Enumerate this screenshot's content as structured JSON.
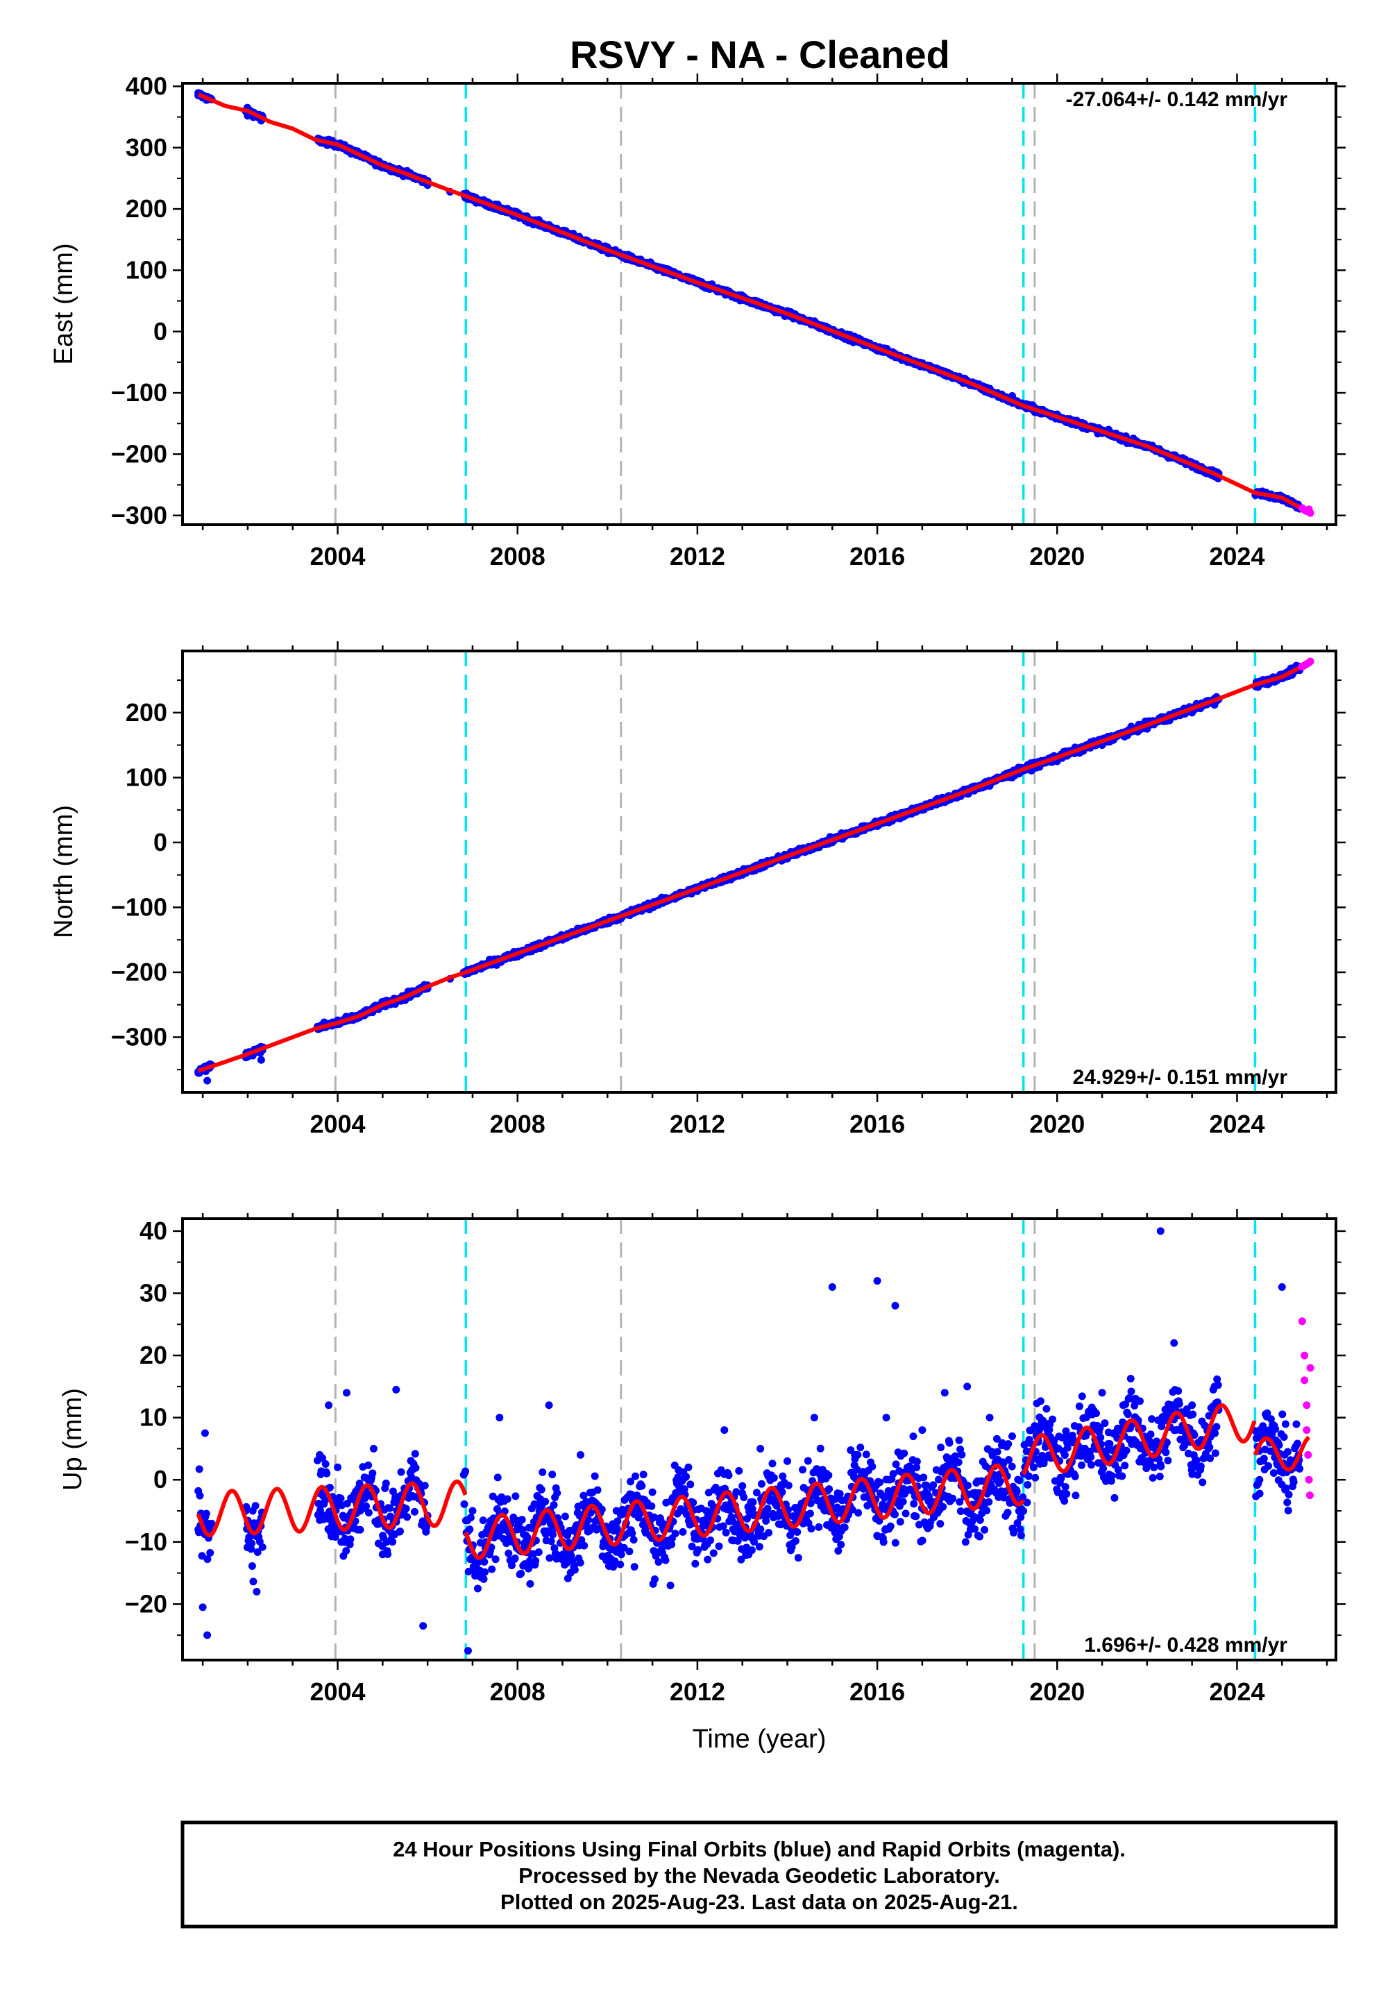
{
  "title": "RSVY  - NA - Cleaned",
  "xlabel": "Time (year)",
  "caption": [
    "24 Hour Positions Using Final Orbits (blue) and Rapid Orbits (magenta).",
    "Processed by the Nevada Geodetic Laboratory.",
    "Plotted on 2025-Aug-23. Last data on 2025-Aug-21."
  ],
  "colors": {
    "final": "#0000ff",
    "rapid": "#ff00ff",
    "model": "#ff0000",
    "equipment_break": "#00e5ee",
    "earthquake_break": "#b4b4b4"
  },
  "chart_data": [
    {
      "type": "scatter",
      "component": "east",
      "ylabel": "East (mm)",
      "rate_text": "-27.064+/- 0.142 mm/yr",
      "rate_position": "top-right",
      "xlim": [
        2000.55,
        2026.2
      ],
      "ylim": [
        -315,
        405
      ],
      "x_ticks": [
        2004,
        2008,
        2012,
        2016,
        2020,
        2024
      ],
      "x_tick_labels": [
        "2004",
        "2008",
        "2012",
        "2016",
        "2020",
        "2024"
      ],
      "y_ticks": [
        -300,
        -200,
        -100,
        0,
        100,
        200,
        300,
        400
      ],
      "y_tick_labels": [
        "−300",
        "−200",
        "−100",
        "0",
        "100",
        "200",
        "300",
        "400"
      ],
      "grid": false,
      "equipment_breaks": [
        2006.85,
        2019.25,
        2024.4
      ],
      "earthquake_breaks": [
        2003.95,
        2010.3,
        2019.5
      ],
      "model": {
        "x": [
          2000.9,
          2001.5,
          2002.0,
          2002.5,
          2003.0,
          2003.5,
          2004.0,
          2004.5,
          2005.0,
          2005.5,
          2006.0,
          2006.5,
          2006.85,
          2008.0,
          2010.0,
          2012.0,
          2014.0,
          2016.0,
          2018.0,
          2019.25,
          2020.0,
          2022.0,
          2023.5,
          2024.4,
          2025.0,
          2025.6
        ],
        "y": [
          387,
          368,
          360,
          342,
          331,
          313,
          305,
          288,
          271,
          258,
          244,
          230,
          221,
          190,
          133,
          80,
          29,
          -27,
          -82,
          -121,
          -139,
          -187,
          -232,
          -263,
          -271,
          -295
        ]
      },
      "final_data": {
        "x": [
          2000.9,
          2001.0,
          2001.1,
          2002.0,
          2002.3,
          2003.7,
          2004.0,
          2004.3,
          2004.7,
          2005.0,
          2005.5,
          2006.0,
          2006.5,
          2006.9,
          2007.5,
          2008.0,
          2008.5,
          2009.0,
          2009.5,
          2010.0,
          2010.5,
          2011.0,
          2011.5,
          2012.0,
          2012.5,
          2013.0,
          2013.5,
          2014.0,
          2014.5,
          2015.0,
          2015.5,
          2016.0,
          2016.5,
          2017.0,
          2017.5,
          2018.0,
          2018.5,
          2019.0,
          2019.5,
          2020.0,
          2020.5,
          2021.0,
          2021.5,
          2022.0,
          2022.5,
          2023.0,
          2023.5,
          2024.5,
          2025.0,
          2025.4
        ],
        "y": [
          385,
          384,
          382,
          352,
          344,
          308,
          303,
          290,
          280,
          273,
          256,
          246,
          228,
          216,
          200,
          188,
          173,
          160,
          147,
          133,
          120,
          107,
          93,
          80,
          67,
          53,
          40,
          27,
          14,
          2,
          -12,
          -27,
          -39,
          -53,
          -66,
          -80,
          -93,
          -105,
          -124,
          -135,
          -150,
          -161,
          -176,
          -189,
          -203,
          -216,
          -228,
          -266,
          -275,
          -287
        ]
      },
      "rapid_data": {
        "x": [
          2025.45,
          2025.5,
          2025.55,
          2025.6,
          2025.63
        ],
        "y": [
          -288,
          -291,
          -293,
          -290,
          -296
        ]
      }
    },
    {
      "type": "scatter",
      "component": "north",
      "ylabel": "North (mm)",
      "rate_text": "24.929+/- 0.151 mm/yr",
      "rate_position": "bottom-right",
      "xlim": [
        2000.55,
        2026.2
      ],
      "ylim": [
        -385,
        295
      ],
      "x_ticks": [
        2004,
        2008,
        2012,
        2016,
        2020,
        2024
      ],
      "x_tick_labels": [
        "2004",
        "2008",
        "2012",
        "2016",
        "2020",
        "2024"
      ],
      "y_ticks": [
        -300,
        -200,
        -100,
        0,
        100,
        200
      ],
      "y_tick_labels": [
        "−300",
        "−200",
        "−100",
        "0",
        "100",
        "200"
      ],
      "grid": false,
      "equipment_breaks": [
        2006.85,
        2019.25,
        2024.4
      ],
      "earthquake_breaks": [
        2003.95,
        2010.3,
        2019.5
      ],
      "model": {
        "x": [
          2000.9,
          2001.5,
          2002.0,
          2002.5,
          2003.0,
          2003.5,
          2004.0,
          2004.5,
          2005.0,
          2005.5,
          2006.0,
          2006.5,
          2006.85,
          2008.0,
          2010.0,
          2012.0,
          2014.0,
          2016.0,
          2018.0,
          2019.25,
          2020.0,
          2022.0,
          2023.5,
          2024.4,
          2025.0,
          2025.6
        ],
        "y": [
          -352,
          -338,
          -326,
          -313,
          -300,
          -287,
          -278,
          -267,
          -250,
          -238,
          -222,
          -208,
          -200,
          -171,
          -121,
          -71,
          -21,
          29,
          79,
          113,
          131,
          181,
          219,
          243,
          255,
          277
        ]
      },
      "final_data": {
        "x": [
          2000.9,
          2001.0,
          2001.1,
          2002.0,
          2002.3,
          2003.7,
          2004.0,
          2004.3,
          2004.7,
          2005.0,
          2005.5,
          2006.0,
          2006.5,
          2006.9,
          2007.5,
          2008.0,
          2008.5,
          2009.0,
          2009.5,
          2010.0,
          2010.5,
          2011.0,
          2011.5,
          2012.0,
          2012.5,
          2013.0,
          2013.5,
          2014.0,
          2014.5,
          2015.0,
          2015.5,
          2016.0,
          2016.5,
          2017.0,
          2017.5,
          2018.0,
          2018.5,
          2019.0,
          2019.5,
          2020.0,
          2020.5,
          2021.0,
          2021.5,
          2022.0,
          2022.5,
          2023.0,
          2023.5,
          2024.5,
          2025.0,
          2025.4
        ],
        "y": [
          -355,
          -350,
          -367,
          -330,
          -335,
          -277,
          -274,
          -268,
          -262,
          -252,
          -243,
          -225,
          -210,
          -198,
          -188,
          -176,
          -163,
          -150,
          -137,
          -125,
          -112,
          -100,
          -87,
          -75,
          -62,
          -50,
          -37,
          -25,
          -12,
          0,
          13,
          25,
          37,
          50,
          62,
          75,
          87,
          100,
          118,
          125,
          138,
          150,
          163,
          175,
          188,
          200,
          212,
          248,
          258,
          270
        ]
      },
      "rapid_data": {
        "x": [
          2025.45,
          2025.5,
          2025.55,
          2025.6,
          2025.63
        ],
        "y": [
          271,
          273,
          275,
          277,
          279
        ]
      }
    },
    {
      "type": "scatter",
      "component": "up",
      "ylabel": "Up (mm)",
      "rate_text": "1.696+/- 0.428 mm/yr",
      "rate_position": "bottom-right",
      "xlim": [
        2000.55,
        2026.2
      ],
      "ylim": [
        -29,
        42
      ],
      "x_ticks": [
        2004,
        2008,
        2012,
        2016,
        2020,
        2024
      ],
      "x_tick_labels": [
        "2004",
        "2008",
        "2012",
        "2016",
        "2020",
        "2024"
      ],
      "y_ticks": [
        -20,
        -10,
        0,
        10,
        20,
        30,
        40
      ],
      "y_tick_labels": [
        "−20",
        "−10",
        "0",
        "10",
        "20",
        "30",
        "40"
      ],
      "grid": false,
      "equipment_breaks": [
        2006.85,
        2019.25,
        2024.4
      ],
      "earthquake_breaks": [
        2003.95,
        2010.3,
        2019.5
      ],
      "model_params": {
        "segments": [
          {
            "start": 2000.9,
            "end": 2006.85,
            "offset": -5.5,
            "rate": 0.3,
            "amp": 3.5
          },
          {
            "start": 2006.85,
            "end": 2019.25,
            "offset": -9.5,
            "rate": 0.72,
            "amp": 3.3
          },
          {
            "start": 2019.25,
            "end": 2024.4,
            "offset": 3.5,
            "rate": 1.2,
            "amp": 3.2
          },
          {
            "start": 2024.4,
            "end": 2025.6,
            "offset": 4.0,
            "rate": 0.3,
            "amp": 2.6
          }
        ]
      },
      "final_data": {
        "x": [
          2000.9,
          2001.0,
          2001.05,
          2001.1,
          2002.0,
          2002.2,
          2003.6,
          2003.8,
          2004.0,
          2004.2,
          2004.5,
          2004.8,
          2005.0,
          2005.3,
          2005.8,
          2005.9,
          2006.9,
          2007.0,
          2007.3,
          2007.6,
          2008.0,
          2008.4,
          2008.7,
          2009.0,
          2009.4,
          2009.8,
          2010.2,
          2010.6,
          2011.0,
          2011.4,
          2011.8,
          2012.2,
          2012.6,
          2013.0,
          2013.4,
          2014.0,
          2014.6,
          2015.0,
          2015.5,
          2016.0,
          2016.2,
          2016.4,
          2017.0,
          2017.5,
          2018.0,
          2018.5,
          2019.0,
          2019.4,
          2019.8,
          2020.2,
          2020.6,
          2021.0,
          2021.5,
          2022.0,
          2022.3,
          2022.6,
          2023.0,
          2023.5,
          2024.5,
          2024.8,
          2025.0,
          2025.3
        ],
        "y": [
          -8,
          -20.5,
          7.5,
          -25,
          -7,
          -18,
          4,
          12,
          2,
          14,
          -5,
          5,
          -12,
          14.5,
          -3,
          -23.5,
          -27.5,
          -5,
          -10,
          10,
          -8,
          -4,
          12,
          -10,
          4,
          -6,
          -5,
          -14,
          -2,
          -17,
          2,
          -5,
          8,
          -1,
          5,
          3,
          10,
          31,
          4,
          32,
          10,
          28,
          8,
          14,
          15,
          10,
          7,
          3,
          9,
          1,
          7,
          14,
          9,
          5,
          40,
          22,
          12,
          15,
          0,
          8,
          31,
          2
        ]
      },
      "rapid_data": {
        "x": [
          2025.45,
          2025.5,
          2025.5,
          2025.55,
          2025.55,
          2025.58,
          2025.6,
          2025.62,
          2025.63
        ],
        "y": [
          25.5,
          20,
          16,
          12,
          8,
          4,
          0,
          -2.5,
          18
        ]
      }
    }
  ]
}
